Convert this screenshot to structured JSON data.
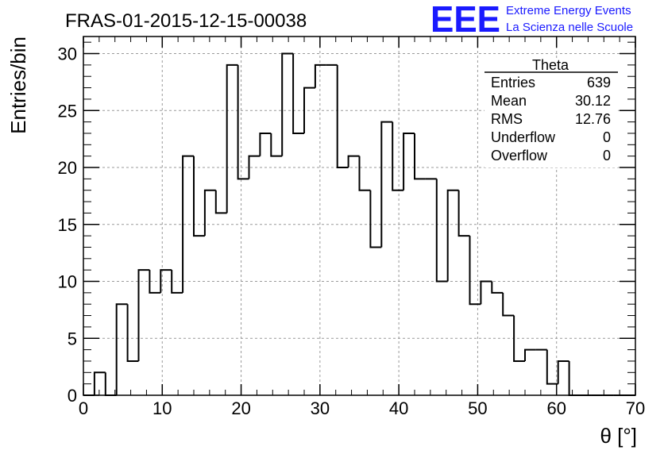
{
  "chart_data": {
    "type": "histogram",
    "title": "FRAS-01-2015-12-15-00038",
    "xlabel": "θ [°]",
    "ylabel": "Entries/bin",
    "xlim": [
      0,
      70
    ],
    "ylim": [
      0,
      31.5
    ],
    "x_ticks": [
      "0",
      "10",
      "20",
      "30",
      "40",
      "50",
      "60",
      "70"
    ],
    "y_ticks": [
      "0",
      "5",
      "10",
      "15",
      "20",
      "25",
      "30"
    ],
    "grid": true,
    "bin_width": 1.4,
    "bin_low_edges": [
      0,
      1.4,
      2.8,
      4.2,
      5.6,
      7.0,
      8.4,
      9.8,
      11.2,
      12.6,
      14.0,
      15.4,
      16.8,
      18.2,
      19.6,
      21.0,
      22.4,
      23.8,
      25.2,
      26.6,
      28.0,
      29.4,
      30.8,
      32.2,
      33.6,
      35.0,
      36.4,
      37.8,
      39.2,
      40.6,
      42.0,
      43.4,
      44.8,
      46.2,
      47.6,
      49.0,
      50.4,
      51.8,
      53.2,
      54.6,
      56.0,
      57.4,
      58.8,
      60.2,
      61.6,
      63.0,
      64.4,
      65.8,
      67.2,
      68.6
    ],
    "values": [
      0,
      2,
      0,
      8,
      3,
      11,
      9,
      11,
      9,
      21,
      14,
      18,
      16,
      29,
      19,
      21,
      23,
      21,
      30,
      23,
      27,
      29,
      29,
      20,
      21,
      18,
      13,
      24,
      18,
      23,
      19,
      19,
      10,
      18,
      14,
      8,
      10,
      9,
      7,
      3,
      4,
      4,
      1,
      3,
      0,
      0,
      0,
      0,
      0,
      0
    ]
  },
  "stats_box": {
    "title": "Theta",
    "rows": [
      {
        "label": "Entries",
        "value": "639"
      },
      {
        "label": "Mean",
        "value": "30.12"
      },
      {
        "label": "RMS",
        "value": "12.76"
      },
      {
        "label": "Underflow",
        "value": "0"
      },
      {
        "label": "Overflow",
        "value": "0"
      }
    ]
  },
  "logo": {
    "mark": "EEE",
    "line1": "Extreme Energy Events",
    "line2": "La Scienza nelle Scuole",
    "color": "#1a1aff"
  },
  "colors": {
    "line": "#000000",
    "grid": "#9a9a9a",
    "logo": "#1a1aff"
  }
}
